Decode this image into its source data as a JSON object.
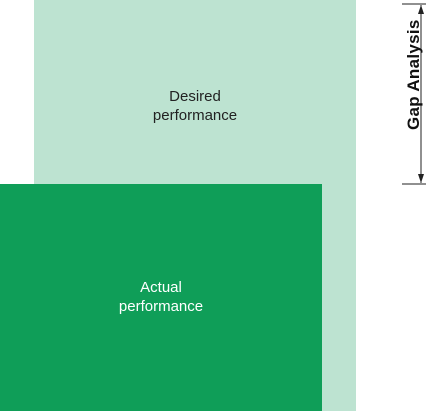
{
  "diagram": {
    "desired": {
      "line1": "Desired",
      "line2": "performance",
      "color": "#bde3d1"
    },
    "actual": {
      "line1": "Actual",
      "line2": "performance",
      "color": "#0f9e58"
    },
    "gap": {
      "label": "Gap Analysis"
    }
  }
}
